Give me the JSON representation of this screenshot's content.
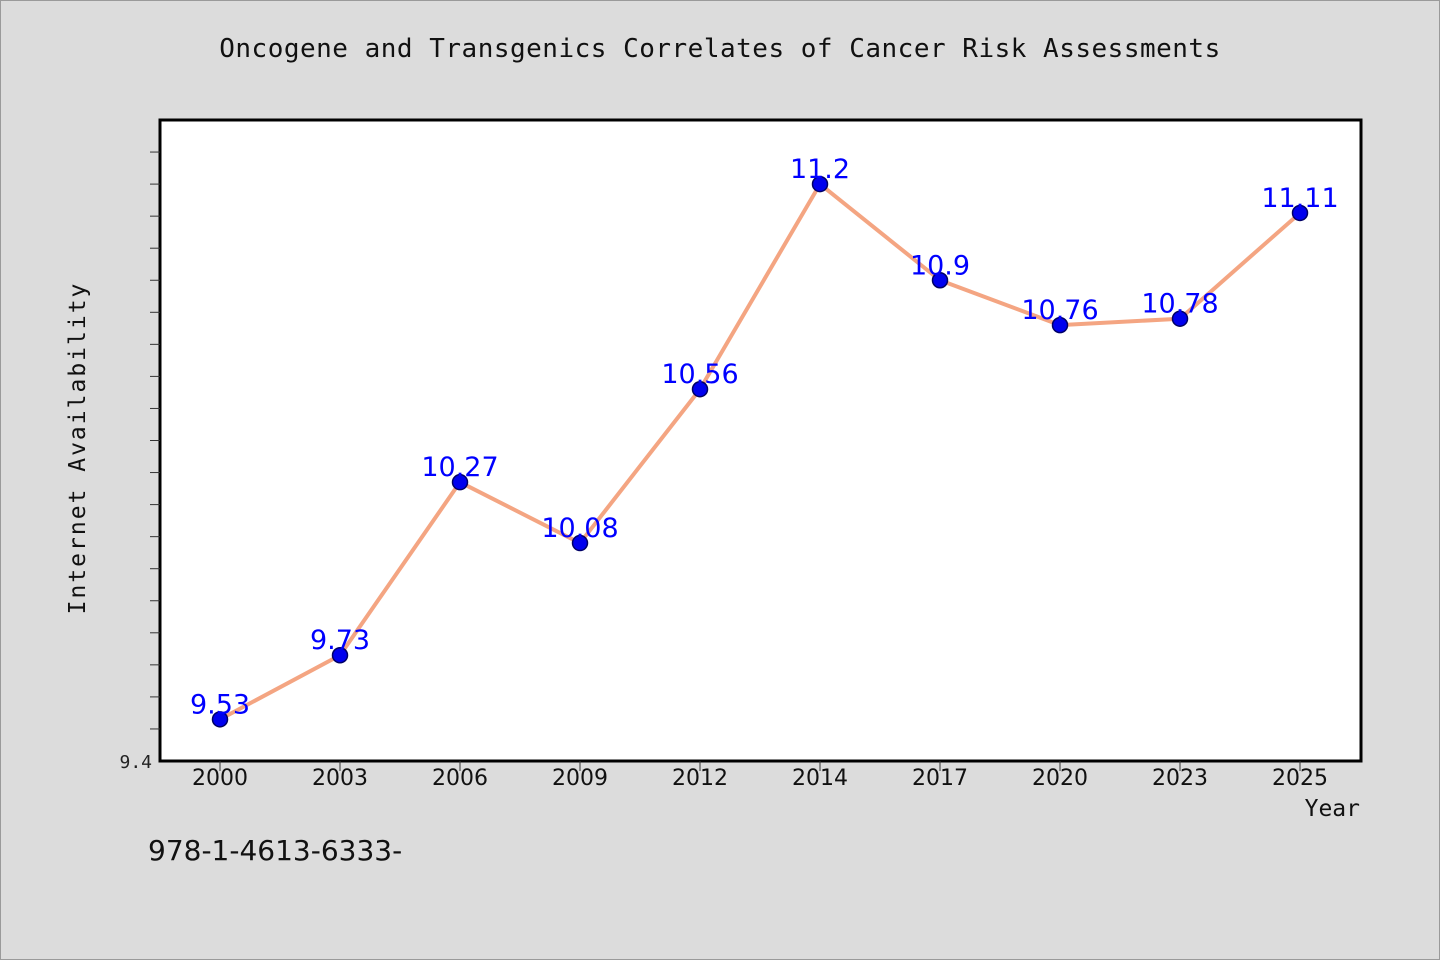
{
  "chart_data": {
    "type": "line",
    "title": "Oncogene and Transgenics Correlates of Cancer Risk Assessments",
    "xlabel": "Year",
    "ylabel": "Internet Availability",
    "categories": [
      "2000",
      "2003",
      "2006",
      "2009",
      "2012",
      "2014",
      "2017",
      "2020",
      "2023",
      "2025"
    ],
    "values": [
      9.53,
      9.73,
      10.27,
      10.08,
      10.56,
      11.2,
      10.9,
      10.76,
      10.78,
      11.11
    ],
    "data_labels": [
      "9.53",
      "9.73",
      "10.27",
      "10.08",
      "10.56",
      "11.2",
      "10.9",
      "10.76",
      "10.78",
      "11.11"
    ],
    "ylim": [
      9.4,
      11.4
    ],
    "y_tick_labels": [
      "9.4"
    ],
    "grid": false,
    "legend": "none",
    "colors": {
      "line": "#f4a582",
      "marker_fill": "#0000ee",
      "marker_stroke": "#000066",
      "data_label": "#0000ff"
    }
  },
  "footer": {
    "code": "978-1-4613-6333-"
  }
}
